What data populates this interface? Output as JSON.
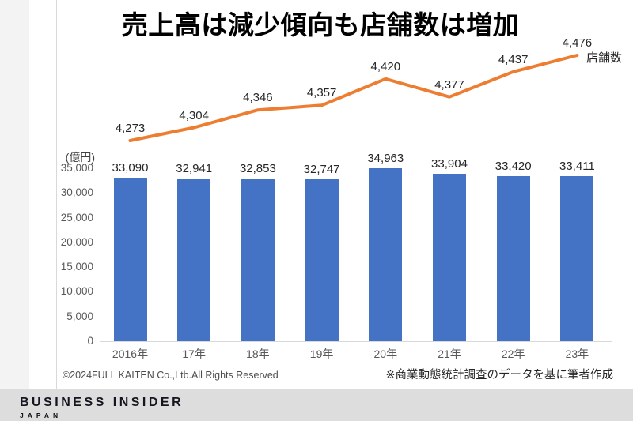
{
  "figure": {
    "title": "売上高は減少傾向も店舗数は増加",
    "y_axis_unit_label": "(億円)",
    "line_series_label": "店舗数",
    "copyright": "©2024FULL KAITEN Co.,Ltb.All Rights Reserved",
    "source_note": "※商業動態統計調査のデータを基に筆者作成"
  },
  "footer_logo": {
    "line1": "BUSINESS INSIDER",
    "line2": "JAPAN"
  },
  "chart_data": {
    "type": "bar",
    "subtype": "combo-bar-line",
    "title": "売上高は減少傾向も店舗数は増加",
    "categories": [
      "2016年",
      "17年",
      "18年",
      "19年",
      "20年",
      "21年",
      "22年",
      "23年"
    ],
    "series": [
      {
        "name": "売上高",
        "type": "bar",
        "unit": "億円",
        "color": "#4472C4",
        "values": [
          33090,
          32941,
          32853,
          32747,
          34963,
          33904,
          33420,
          33411
        ]
      },
      {
        "name": "店舗数",
        "type": "line",
        "color": "#ED7D31",
        "values": [
          4273,
          4304,
          4346,
          4357,
          4420,
          4377,
          4437,
          4476
        ]
      }
    ],
    "left_axis": {
      "label": "(億円)",
      "min": 0,
      "max": 35000,
      "step": 5000
    },
    "grid": false,
    "data_labels": true,
    "legend": "none (line labeled 店舗数 at right end)"
  }
}
